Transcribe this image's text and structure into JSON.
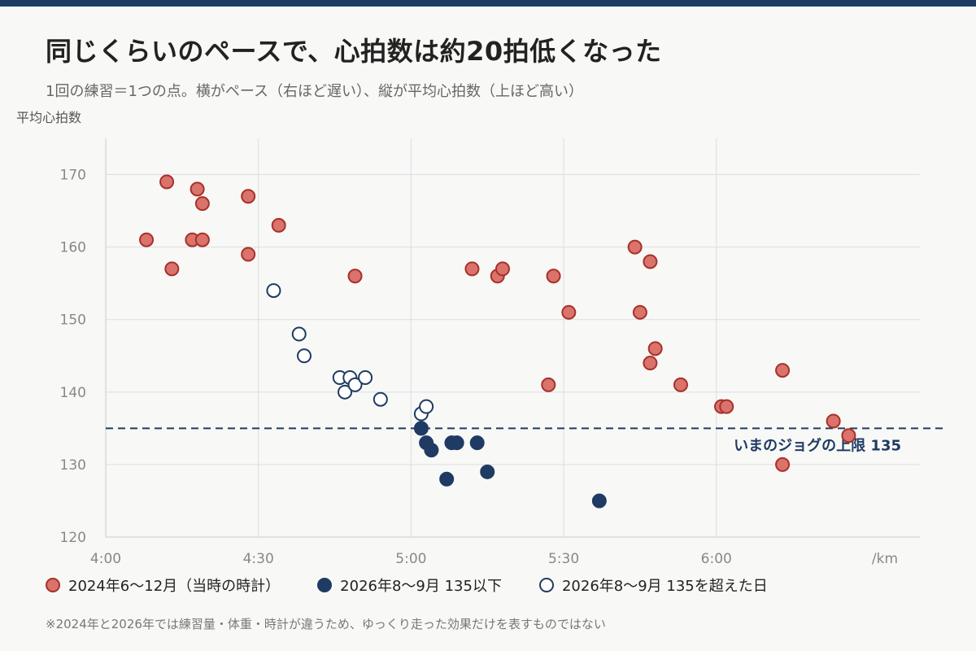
{
  "title": "同じくらいのペースで、心拍数は約20拍低くなった",
  "subtitle": "1回の練習＝1つの点。横がペース（右ほど遅い）、縦が平均心拍数（上ほど高い）",
  "footnote": "※2024年と2026年では練習量・体重・時計が違うため、ゆっくり走った効果だけを表すものではない",
  "colors": {
    "red_fill": "#d9736b",
    "red_stroke": "#a8302a",
    "navy": "#1f3b64",
    "grid": "#dcdde3"
  },
  "chart_data": {
    "type": "scatter",
    "ylabel": "平均心拍数",
    "xunit_label": "/km",
    "xlim_sec": [
      240,
      400
    ],
    "ylim": [
      120,
      175
    ],
    "xticks": [
      {
        "value": 240,
        "label": "4:00"
      },
      {
        "value": 270,
        "label": "4:30"
      },
      {
        "value": 300,
        "label": "5:00"
      },
      {
        "value": 330,
        "label": "5:30"
      },
      {
        "value": 360,
        "label": "6:00"
      }
    ],
    "yticks": [
      120,
      130,
      140,
      150,
      160,
      170
    ],
    "reference_line": {
      "y": 135,
      "label": "いまのジョグの上限 135"
    },
    "series": [
      {
        "name": "2024年6〜12月（当時の時計）",
        "style": "red",
        "points": [
          {
            "x": 248,
            "y": 161
          },
          {
            "x": 252,
            "y": 169
          },
          {
            "x": 253,
            "y": 157
          },
          {
            "x": 257,
            "y": 161
          },
          {
            "x": 258,
            "y": 168
          },
          {
            "x": 259,
            "y": 166
          },
          {
            "x": 259,
            "y": 161
          },
          {
            "x": 268,
            "y": 167
          },
          {
            "x": 268,
            "y": 159
          },
          {
            "x": 274,
            "y": 163
          },
          {
            "x": 289,
            "y": 156
          },
          {
            "x": 312,
            "y": 157
          },
          {
            "x": 317,
            "y": 156
          },
          {
            "x": 318,
            "y": 157
          },
          {
            "x": 327,
            "y": 141
          },
          {
            "x": 328,
            "y": 156
          },
          {
            "x": 331,
            "y": 151
          },
          {
            "x": 344,
            "y": 160
          },
          {
            "x": 345,
            "y": 151
          },
          {
            "x": 347,
            "y": 158
          },
          {
            "x": 347,
            "y": 144
          },
          {
            "x": 348,
            "y": 146
          },
          {
            "x": 353,
            "y": 141
          },
          {
            "x": 361,
            "y": 138
          },
          {
            "x": 362,
            "y": 138
          },
          {
            "x": 373,
            "y": 143
          },
          {
            "x": 373,
            "y": 130
          },
          {
            "x": 383,
            "y": 136
          },
          {
            "x": 386,
            "y": 134
          }
        ]
      },
      {
        "name": "2026年8〜9月 135以下",
        "style": "navy-filled",
        "points": [
          {
            "x": 302,
            "y": 135
          },
          {
            "x": 303,
            "y": 133
          },
          {
            "x": 304,
            "y": 132
          },
          {
            "x": 307,
            "y": 128
          },
          {
            "x": 308,
            "y": 133
          },
          {
            "x": 309,
            "y": 133
          },
          {
            "x": 313,
            "y": 133
          },
          {
            "x": 315,
            "y": 129
          },
          {
            "x": 337,
            "y": 125
          }
        ]
      },
      {
        "name": "2026年8〜9月 135を超えた日",
        "style": "navy-hollow",
        "points": [
          {
            "x": 273,
            "y": 154
          },
          {
            "x": 278,
            "y": 148
          },
          {
            "x": 279,
            "y": 145
          },
          {
            "x": 286,
            "y": 142
          },
          {
            "x": 287,
            "y": 140
          },
          {
            "x": 288,
            "y": 142
          },
          {
            "x": 289,
            "y": 141
          },
          {
            "x": 291,
            "y": 142
          },
          {
            "x": 294,
            "y": 139
          },
          {
            "x": 302,
            "y": 137
          },
          {
            "x": 303,
            "y": 138
          }
        ]
      }
    ]
  }
}
